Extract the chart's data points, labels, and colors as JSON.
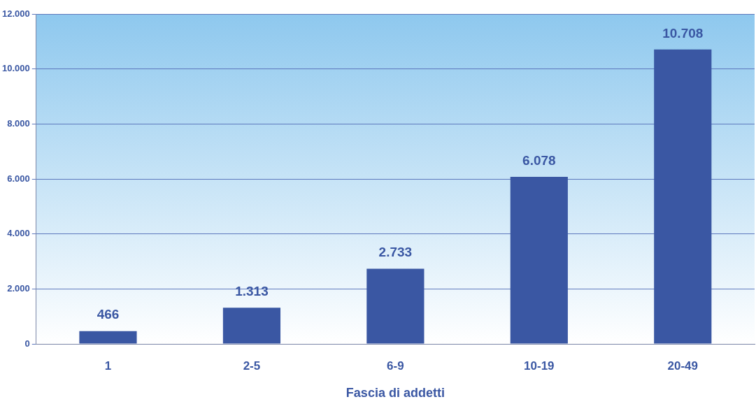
{
  "chart_data": {
    "type": "bar",
    "xlabel": "Fascia di addetti",
    "categories": [
      "1",
      "2-5",
      "6-9",
      "10-19",
      "20-49"
    ],
    "values": [
      466,
      1313,
      2733,
      6078,
      10708
    ],
    "value_labels": [
      "466",
      "1.313",
      "2.733",
      "6.078",
      "10.708"
    ],
    "color": "#3a57a3",
    "ylim": [
      0,
      12000
    ],
    "yticks": [
      {
        "value": 0,
        "label": "0"
      },
      {
        "value": 2000,
        "label": "2.000"
      },
      {
        "value": 4000,
        "label": "4.000"
      },
      {
        "value": 6000,
        "label": "6.000"
      },
      {
        "value": 8000,
        "label": "8.000"
      },
      {
        "value": 10000,
        "label": "10.000"
      },
      {
        "value": 12000,
        "label": "12.000"
      }
    ],
    "grid": "y",
    "legend": false
  }
}
